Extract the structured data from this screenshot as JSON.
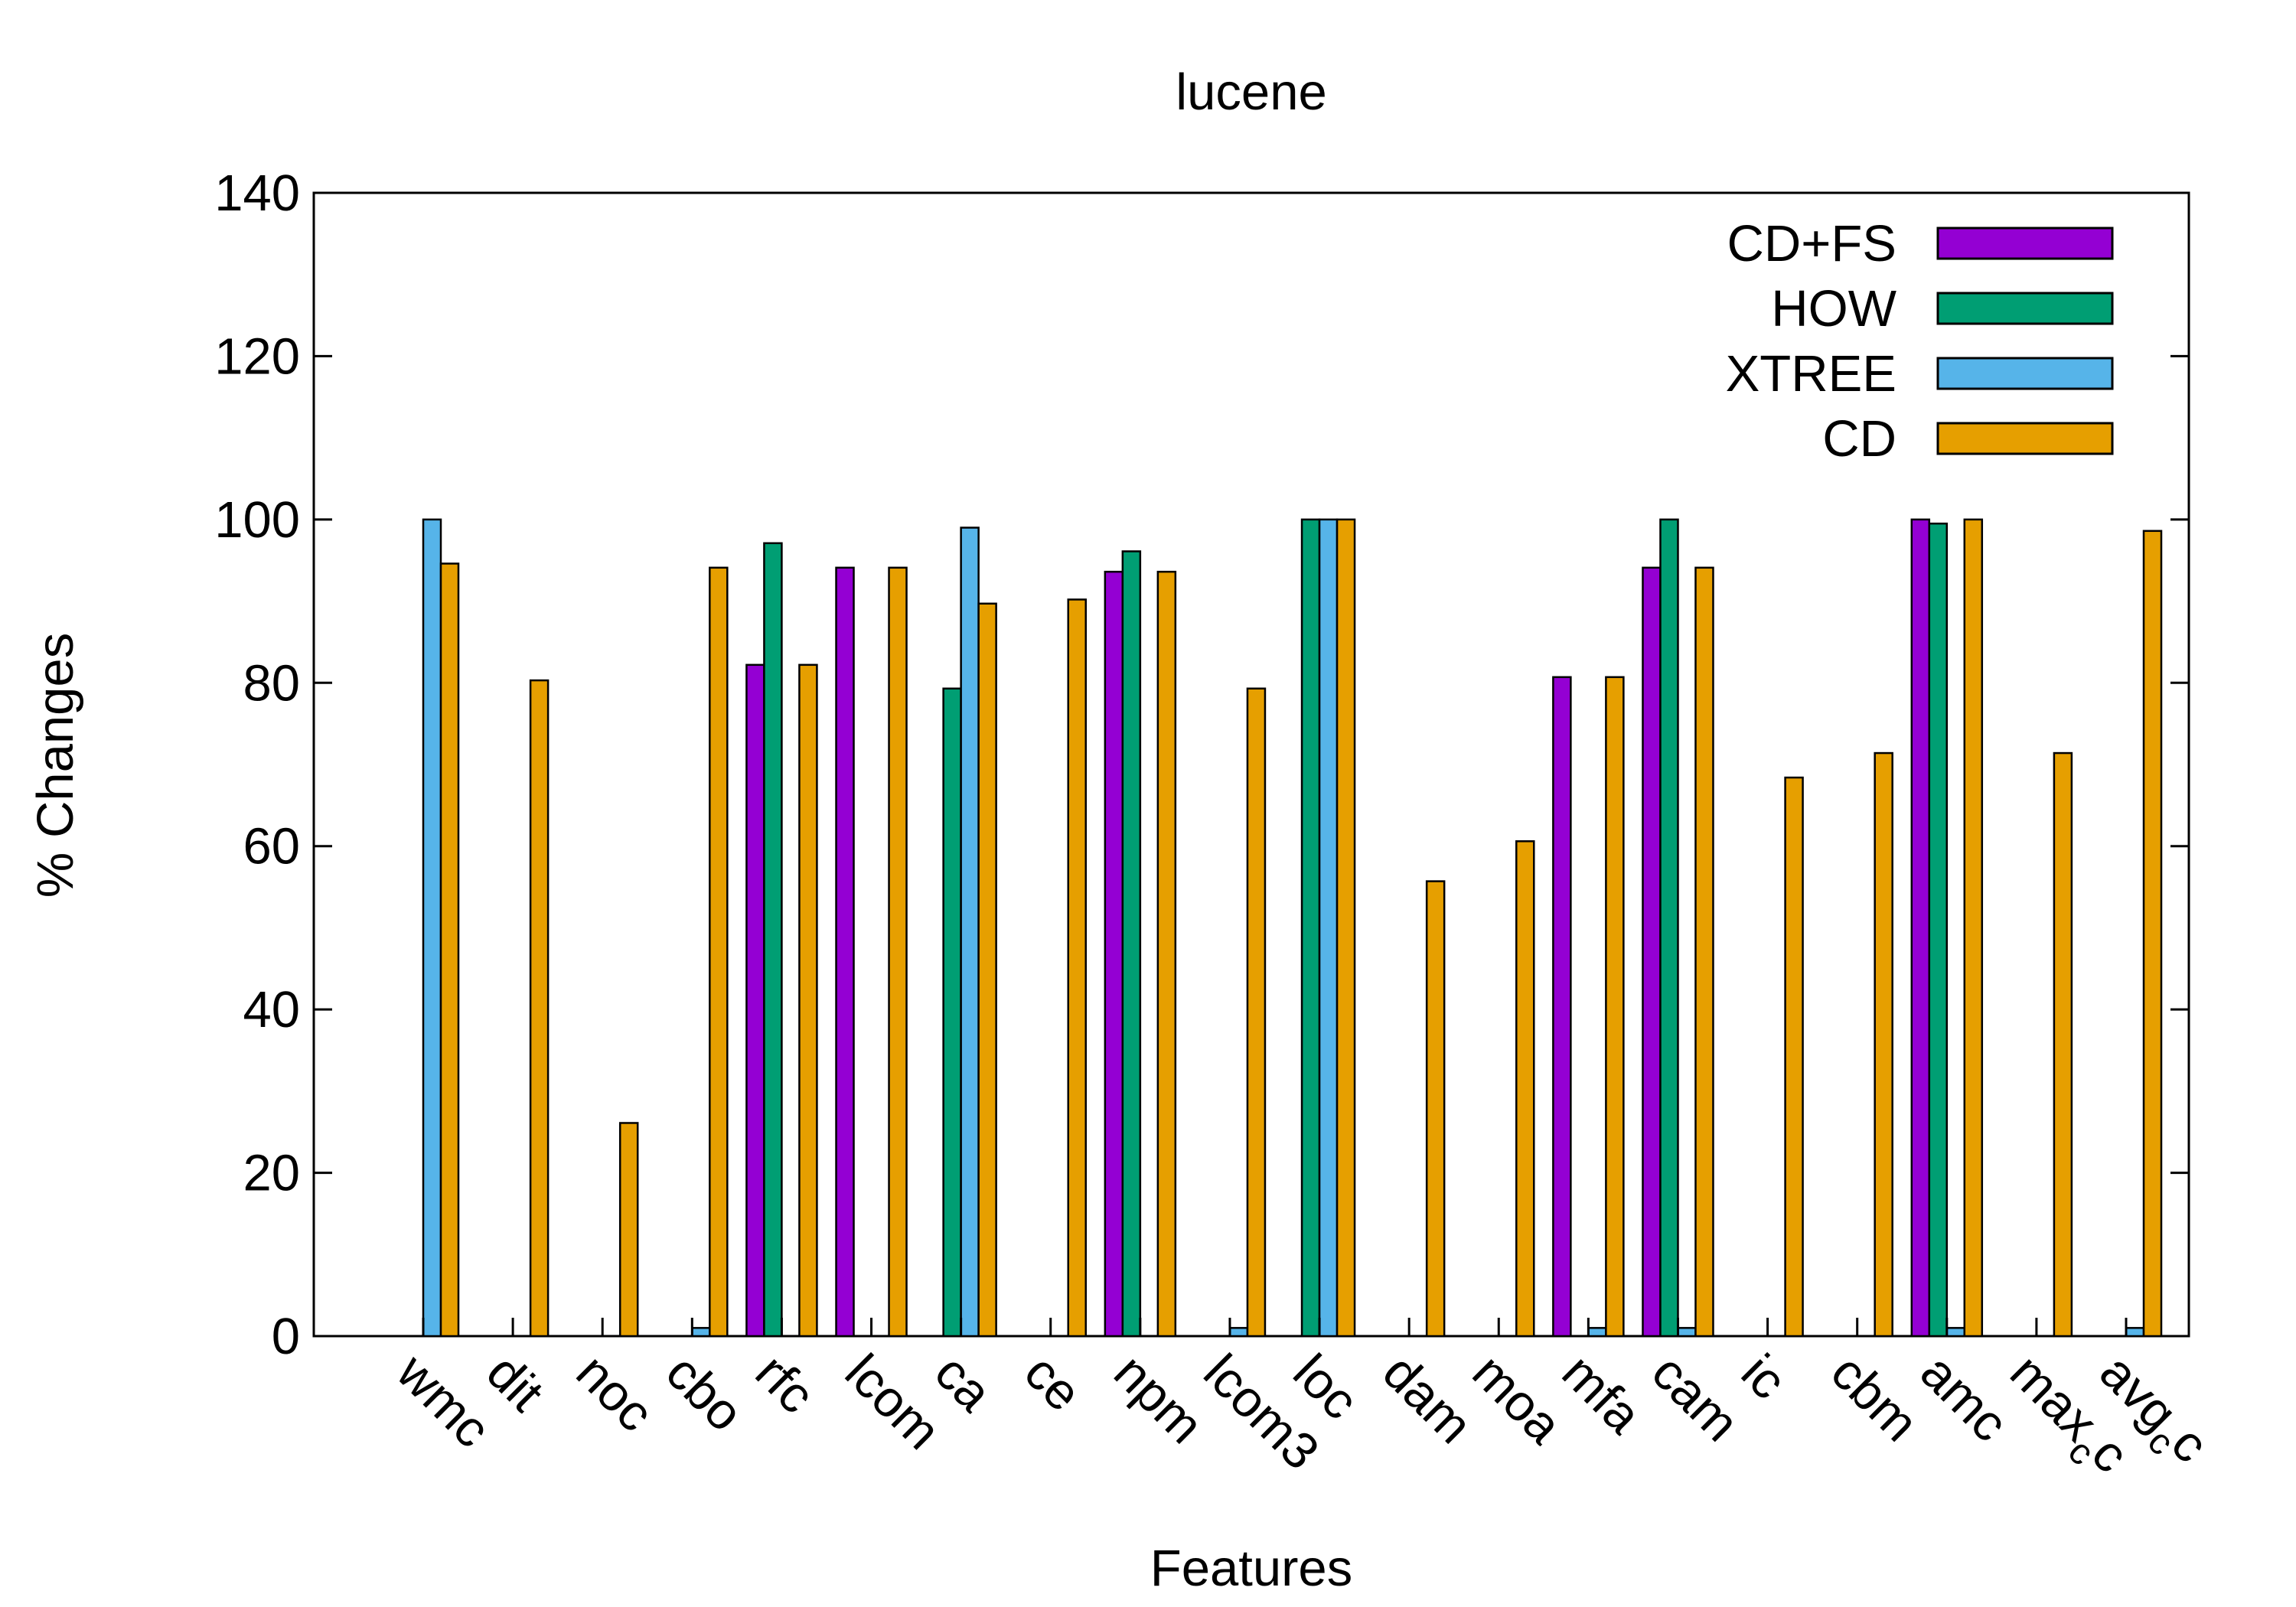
{
  "chart_data": {
    "type": "bar",
    "title": "lucene",
    "xlabel": "Features",
    "ylabel": "% Changes",
    "ylim": [
      0,
      140
    ],
    "yticks": [
      0,
      20,
      40,
      60,
      80,
      100,
      120,
      140
    ],
    "grid": false,
    "legend_position": "top-right",
    "categories": [
      {
        "id": "wmc",
        "text": "wmc"
      },
      {
        "id": "dit",
        "text": "dit"
      },
      {
        "id": "noc",
        "text": "noc"
      },
      {
        "id": "cbo",
        "text": "cbo"
      },
      {
        "id": "rfc",
        "text": "rfc"
      },
      {
        "id": "lcom",
        "text": "lcom"
      },
      {
        "id": "ca",
        "text": "ca"
      },
      {
        "id": "ce",
        "text": "ce"
      },
      {
        "id": "npm",
        "text": "npm"
      },
      {
        "id": "lcom3",
        "text": "lcom3"
      },
      {
        "id": "loc",
        "text": "loc"
      },
      {
        "id": "dam",
        "text": "dam"
      },
      {
        "id": "moa",
        "text": "moa"
      },
      {
        "id": "mfa",
        "text": "mfa"
      },
      {
        "id": "cam",
        "text": "cam"
      },
      {
        "id": "ic",
        "text": "ic"
      },
      {
        "id": "cbm",
        "text": "cbm"
      },
      {
        "id": "amc",
        "text": "amc"
      },
      {
        "id": "max_cc",
        "text": "max",
        "sub": "c",
        "tail": "c"
      },
      {
        "id": "avg_cc",
        "text": "avg",
        "sub": "c",
        "tail": "c"
      }
    ],
    "series": [
      {
        "name": "CD+FS",
        "color": "#9400d3",
        "values": [
          0,
          0,
          0,
          0,
          82.2,
          94.1,
          0,
          0,
          93.6,
          0,
          0,
          0,
          0,
          80.7,
          94.1,
          0,
          0,
          100,
          0,
          0
        ]
      },
      {
        "name": "HOW",
        "color": "#009e73",
        "values": [
          0,
          0,
          0,
          0,
          97.1,
          0,
          79.3,
          0,
          96.1,
          0,
          100,
          0,
          0,
          0,
          100,
          0,
          0,
          99.5,
          0,
          0
        ]
      },
      {
        "name": "XTREE",
        "color": "#56b4e9",
        "values": [
          100,
          0,
          0,
          1,
          0,
          0,
          99.0,
          0,
          0,
          1,
          100,
          0,
          0,
          1,
          1,
          0,
          0,
          1,
          0,
          1
        ]
      },
      {
        "name": "CD",
        "color": "#e69f00",
        "values": [
          94.6,
          80.3,
          26.1,
          94.1,
          82.2,
          94.1,
          89.7,
          90.2,
          93.6,
          79.3,
          100,
          55.7,
          60.6,
          80.7,
          94.1,
          68.4,
          71.4,
          100,
          71.4,
          98.6
        ]
      }
    ]
  }
}
